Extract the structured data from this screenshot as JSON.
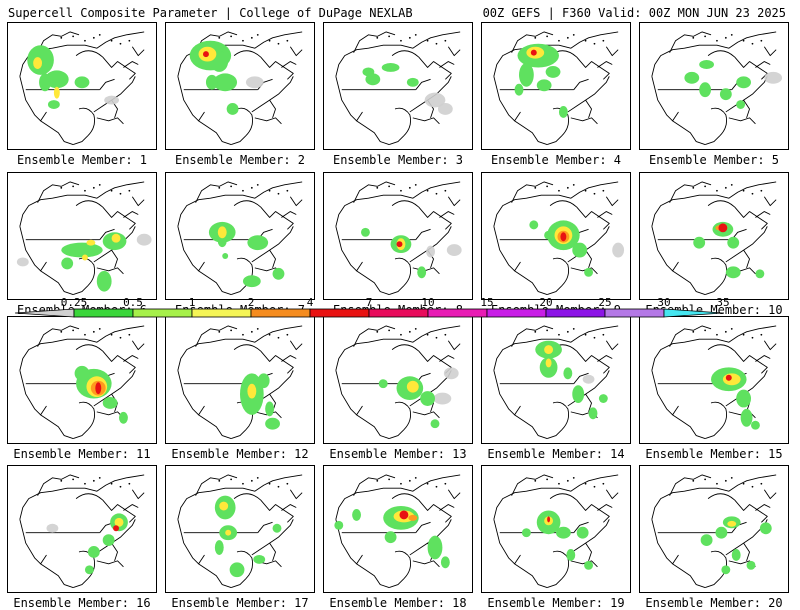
{
  "header": {
    "left": "Supercell Composite Parameter | College of DuPage NEXLAB",
    "right": "00Z GEFS | F360 Valid: 00Z MON JUN 23 2025"
  },
  "member_prefix": "Ensemble Member: ",
  "members": [
    {
      "id": "1",
      "blobs": [
        [
          22,
          25,
          "g",
          9,
          10
        ],
        [
          20,
          27,
          "y",
          3,
          4
        ],
        [
          33,
          38,
          "g",
          8,
          6
        ],
        [
          50,
          40,
          "g",
          5,
          4
        ],
        [
          25,
          40,
          "g",
          4,
          6
        ],
        [
          33,
          47,
          "y",
          2,
          4
        ],
        [
          31,
          55,
          "g",
          4,
          3
        ],
        [
          70,
          52,
          "l",
          5,
          3
        ]
      ]
    },
    {
      "id": "2",
      "blobs": [
        [
          30,
          22,
          "g",
          14,
          10
        ],
        [
          28,
          21,
          "y",
          6,
          5
        ],
        [
          27,
          21,
          "r",
          2,
          2
        ],
        [
          36,
          26,
          "g",
          6,
          7
        ],
        [
          40,
          40,
          "g",
          8,
          6
        ],
        [
          31,
          40,
          "g",
          4,
          5
        ],
        [
          45,
          58,
          "g",
          4,
          4
        ],
        [
          60,
          40,
          "l",
          6,
          4
        ]
      ]
    },
    {
      "id": "3",
      "blobs": [
        [
          45,
          30,
          "g",
          6,
          3
        ],
        [
          30,
          33,
          "g",
          4,
          3
        ],
        [
          33,
          38,
          "g",
          5,
          4
        ],
        [
          60,
          40,
          "g",
          4,
          3
        ],
        [
          75,
          52,
          "l",
          7,
          5
        ],
        [
          82,
          58,
          "l",
          5,
          4
        ]
      ]
    },
    {
      "id": "4",
      "blobs": [
        [
          38,
          22,
          "g",
          14,
          8
        ],
        [
          36,
          20,
          "y",
          6,
          4
        ],
        [
          35,
          20,
          "r",
          2,
          2
        ],
        [
          30,
          35,
          "g",
          5,
          8
        ],
        [
          42,
          42,
          "g",
          5,
          4
        ],
        [
          48,
          33,
          "g",
          5,
          4
        ],
        [
          25,
          45,
          "g",
          3,
          4
        ],
        [
          55,
          60,
          "g",
          3,
          4
        ]
      ]
    },
    {
      "id": "5",
      "blobs": [
        [
          45,
          28,
          "g",
          5,
          3
        ],
        [
          35,
          37,
          "g",
          5,
          4
        ],
        [
          44,
          45,
          "g",
          4,
          5
        ],
        [
          58,
          48,
          "g",
          4,
          4
        ],
        [
          70,
          40,
          "g",
          5,
          4
        ],
        [
          90,
          37,
          "l",
          6,
          4
        ],
        [
          68,
          55,
          "g",
          3,
          3
        ]
      ]
    },
    {
      "id": "6",
      "blobs": [
        [
          50,
          52,
          "g",
          14,
          5
        ],
        [
          72,
          46,
          "g",
          8,
          6
        ],
        [
          73,
          44,
          "y",
          3,
          3
        ],
        [
          56,
          47,
          "y",
          3,
          2
        ],
        [
          40,
          61,
          "g",
          4,
          4
        ],
        [
          65,
          73,
          "g",
          5,
          7
        ],
        [
          10,
          60,
          "l",
          4,
          3
        ],
        [
          92,
          45,
          "l",
          5,
          4
        ],
        [
          52,
          57,
          "y",
          2,
          2
        ]
      ]
    },
    {
      "id": "7",
      "blobs": [
        [
          38,
          40,
          "g",
          9,
          7
        ],
        [
          38,
          40,
          "y",
          3,
          4
        ],
        [
          38,
          46,
          "g",
          3,
          4
        ],
        [
          62,
          47,
          "g",
          7,
          5
        ],
        [
          76,
          68,
          "g",
          4,
          4
        ],
        [
          58,
          73,
          "g",
          6,
          4
        ],
        [
          40,
          56,
          "g",
          2,
          2
        ]
      ]
    },
    {
      "id": "8",
      "blobs": [
        [
          52,
          48,
          "g",
          7,
          6
        ],
        [
          52,
          48,
          "y",
          3,
          4
        ],
        [
          51,
          48,
          "r",
          2,
          2
        ],
        [
          66,
          67,
          "g",
          3,
          4
        ],
        [
          28,
          40,
          "g",
          3,
          3
        ],
        [
          72,
          53,
          "l",
          3,
          4
        ],
        [
          88,
          52,
          "l",
          5,
          4
        ]
      ]
    },
    {
      "id": "9",
      "blobs": [
        [
          55,
          42,
          "g",
          11,
          10
        ],
        [
          55,
          42,
          "y",
          6,
          6
        ],
        [
          55,
          43,
          "o",
          4,
          4
        ],
        [
          55,
          43,
          "r",
          2,
          3
        ],
        [
          45,
          42,
          "g",
          3,
          3
        ],
        [
          66,
          52,
          "g",
          5,
          5
        ],
        [
          72,
          67,
          "g",
          3,
          3
        ],
        [
          35,
          35,
          "g",
          3,
          3
        ],
        [
          92,
          52,
          "l",
          4,
          5
        ]
      ]
    },
    {
      "id": "10",
      "blobs": [
        [
          56,
          38,
          "g",
          7,
          5
        ],
        [
          56,
          37,
          "r",
          3,
          3
        ],
        [
          55,
          37,
          "o",
          4,
          2
        ],
        [
          63,
          47,
          "g",
          4,
          4
        ],
        [
          40,
          47,
          "g",
          4,
          4
        ],
        [
          63,
          67,
          "g",
          5,
          4
        ],
        [
          81,
          68,
          "g",
          3,
          3
        ]
      ]
    },
    {
      "id": "11",
      "blobs": [
        [
          58,
          45,
          "g",
          12,
          10
        ],
        [
          60,
          47,
          "y",
          7,
          7
        ],
        [
          61,
          48,
          "o",
          5,
          5
        ],
        [
          61,
          48,
          "r",
          2,
          4
        ],
        [
          50,
          38,
          "g",
          5,
          5
        ],
        [
          69,
          58,
          "g",
          5,
          4
        ],
        [
          78,
          68,
          "g",
          3,
          4
        ]
      ]
    },
    {
      "id": "12",
      "blobs": [
        [
          58,
          52,
          "g",
          8,
          14
        ],
        [
          58,
          50,
          "y",
          3,
          5
        ],
        [
          66,
          43,
          "g",
          4,
          5
        ],
        [
          70,
          62,
          "g",
          3,
          5
        ],
        [
          72,
          72,
          "g",
          5,
          4
        ]
      ]
    },
    {
      "id": "13",
      "blobs": [
        [
          58,
          48,
          "g",
          9,
          8
        ],
        [
          60,
          47,
          "y",
          4,
          4
        ],
        [
          70,
          55,
          "g",
          5,
          5
        ],
        [
          80,
          55,
          "l",
          6,
          4
        ],
        [
          86,
          38,
          "l",
          5,
          4
        ],
        [
          75,
          72,
          "g",
          3,
          3
        ],
        [
          40,
          45,
          "g",
          3,
          3
        ]
      ]
    },
    {
      "id": "14",
      "blobs": [
        [
          45,
          22,
          "g",
          9,
          6
        ],
        [
          45,
          22,
          "y",
          3,
          3
        ],
        [
          45,
          34,
          "g",
          6,
          7
        ],
        [
          45,
          31,
          "y",
          2,
          3
        ],
        [
          58,
          38,
          "g",
          3,
          4
        ],
        [
          65,
          52,
          "g",
          4,
          6
        ],
        [
          75,
          65,
          "g",
          3,
          4
        ],
        [
          82,
          55,
          "g",
          3,
          3
        ],
        [
          72,
          42,
          "l",
          4,
          3
        ]
      ]
    },
    {
      "id": "15",
      "blobs": [
        [
          60,
          42,
          "g",
          12,
          8
        ],
        [
          62,
          42,
          "y",
          6,
          4
        ],
        [
          60,
          41,
          "r",
          2,
          2
        ],
        [
          70,
          55,
          "g",
          5,
          6
        ],
        [
          72,
          68,
          "g",
          4,
          6
        ],
        [
          78,
          73,
          "g",
          3,
          3
        ]
      ]
    },
    {
      "id": "16",
      "blobs": [
        [
          75,
          38,
          "g",
          6,
          6
        ],
        [
          75,
          38,
          "y",
          3,
          3
        ],
        [
          73,
          42,
          "r",
          2,
          2
        ],
        [
          68,
          50,
          "g",
          4,
          4
        ],
        [
          58,
          58,
          "g",
          4,
          4
        ],
        [
          55,
          70,
          "g",
          3,
          3
        ],
        [
          30,
          42,
          "l",
          4,
          3
        ]
      ]
    },
    {
      "id": "17",
      "blobs": [
        [
          40,
          28,
          "g",
          7,
          8
        ],
        [
          39,
          27,
          "y",
          3,
          3
        ],
        [
          42,
          45,
          "g",
          6,
          5
        ],
        [
          42,
          45,
          "y",
          2,
          2
        ],
        [
          36,
          55,
          "g",
          3,
          5
        ],
        [
          48,
          70,
          "g",
          5,
          5
        ],
        [
          63,
          63,
          "g",
          4,
          3
        ],
        [
          75,
          42,
          "g",
          3,
          3
        ]
      ]
    },
    {
      "id": "18",
      "blobs": [
        [
          52,
          35,
          "g",
          12,
          8
        ],
        [
          54,
          34,
          "y",
          7,
          4
        ],
        [
          54,
          33,
          "r",
          3,
          3
        ],
        [
          60,
          35,
          "o",
          3,
          2
        ],
        [
          45,
          48,
          "g",
          4,
          4
        ],
        [
          75,
          55,
          "g",
          5,
          8
        ],
        [
          82,
          65,
          "g",
          3,
          4
        ],
        [
          22,
          33,
          "g",
          3,
          4
        ],
        [
          10,
          40,
          "g",
          3,
          3
        ]
      ]
    },
    {
      "id": "19",
      "blobs": [
        [
          45,
          38,
          "g",
          8,
          8
        ],
        [
          45,
          37,
          "y",
          3,
          3
        ],
        [
          45,
          36,
          "r",
          1,
          2
        ],
        [
          55,
          45,
          "g",
          5,
          4
        ],
        [
          68,
          45,
          "g",
          4,
          4
        ],
        [
          60,
          60,
          "g",
          3,
          4
        ],
        [
          72,
          67,
          "g",
          3,
          3
        ],
        [
          30,
          45,
          "g",
          3,
          3
        ]
      ]
    },
    {
      "id": "20",
      "blobs": [
        [
          62,
          38,
          "g",
          6,
          4
        ],
        [
          62,
          39,
          "y",
          3,
          2
        ],
        [
          55,
          45,
          "g",
          4,
          4
        ],
        [
          45,
          50,
          "g",
          4,
          4
        ],
        [
          85,
          42,
          "g",
          4,
          4
        ],
        [
          65,
          60,
          "g",
          3,
          4
        ],
        [
          75,
          67,
          "g",
          3,
          3
        ],
        [
          58,
          70,
          "g",
          3,
          3
        ]
      ]
    }
  ],
  "colorbar": {
    "labels": [
      "0.25",
      "0.5",
      "1",
      "2",
      "4",
      "7",
      "10",
      "15",
      "20",
      "25",
      "30",
      "35"
    ],
    "colors": [
      "#d0d0d0",
      "#3ad63a",
      "#a6f04a",
      "#f5f556",
      "#f58c1f",
      "#e81212",
      "#e80c5c",
      "#e81cb4",
      "#c81ee6",
      "#8c14e6",
      "#b478e6",
      "#46e6f0"
    ]
  },
  "fill_colors": {
    "l": "#cfcfcf",
    "g": "#5fe15f",
    "y": "#ffe83a",
    "o": "#ff9a1f",
    "r": "#e81212"
  }
}
